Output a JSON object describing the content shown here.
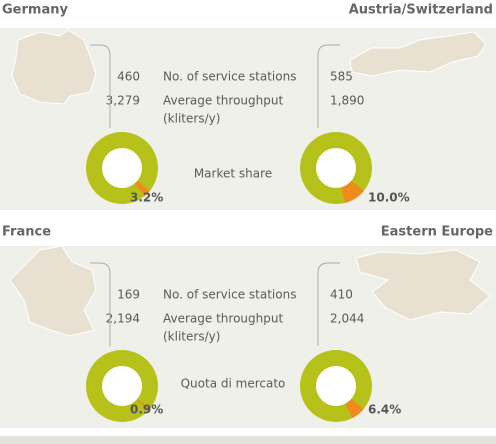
{
  "sections": [
    {
      "stations_label": "No. of service stations",
      "throughput_label": "Average throughput",
      "throughput_unit": "(kliters/y)",
      "share_label": "Market share",
      "regions": [
        {
          "name": "Germany",
          "stations": "460",
          "throughput": "3,279",
          "share": {
            "value": 3.2,
            "label": "3.2%"
          }
        },
        {
          "name": "Austria/Switzerland",
          "stations": "585",
          "throughput": "1,890",
          "share": {
            "value": 10.0,
            "label": "10.0%"
          }
        }
      ]
    },
    {
      "stations_label": "No. of service stations",
      "throughput_label": "Average throughput",
      "throughput_unit": "(kliters/y)",
      "share_label": "Quota di mercato",
      "regions": [
        {
          "name": "France",
          "stations": "169",
          "throughput": "2,194",
          "share": {
            "value": 0.9,
            "label": "0.9%"
          }
        },
        {
          "name": "Eastern Europe",
          "stations": "410",
          "throughput": "2,044",
          "share": {
            "value": 6.4,
            "label": "6.4%"
          }
        }
      ]
    }
  ]
}
